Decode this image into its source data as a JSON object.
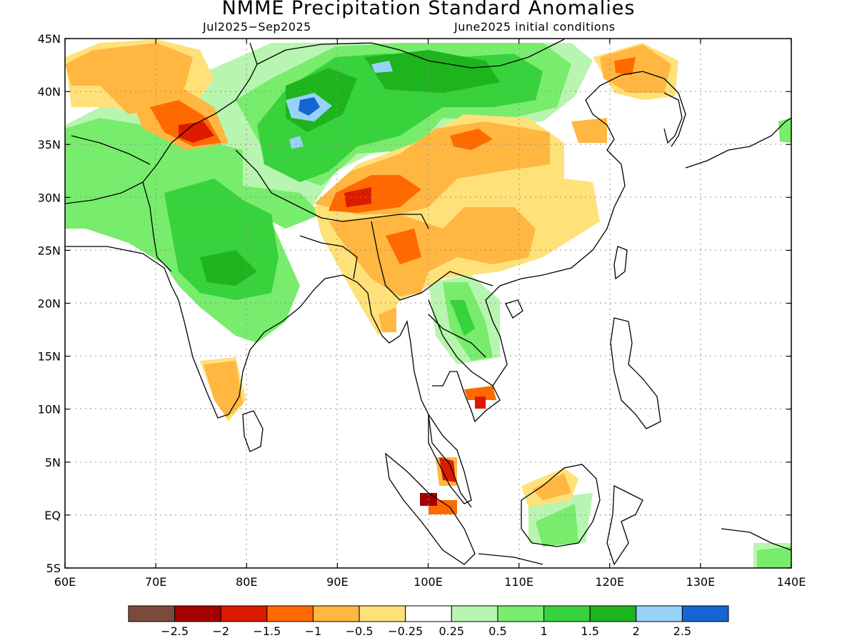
{
  "header": {
    "title": "NMME Precipitation Standard Anomalies",
    "season": "Jul2025−Sep2025",
    "initial_conditions": "June2025 initial conditions"
  },
  "map": {
    "lat_labels": [
      "45N",
      "40N",
      "35N",
      "30N",
      "25N",
      "20N",
      "15N",
      "10N",
      "5N",
      "EQ",
      "5S"
    ],
    "lon_labels": [
      "60E",
      "70E",
      "80E",
      "90E",
      "100E",
      "110E",
      "120E",
      "130E",
      "140E"
    ]
  },
  "legend": {
    "colors": [
      "#7a4b3c",
      "#a40000",
      "#dc1a00",
      "#ff6a00",
      "#ffb741",
      "#ffe17a",
      "#ffffff",
      "#b8f5b0",
      "#78ec6c",
      "#37d23c",
      "#1eb41e",
      "#96d2fa",
      "#1464d2"
    ],
    "labels": [
      "−2.5",
      "−2",
      "−1.5",
      "−1",
      "−0.5",
      "−0.25",
      "0.25",
      "0.5",
      "1",
      "1.5",
      "2",
      "2.5"
    ]
  },
  "colors": {
    "dry_strong": "#dc1a00",
    "dry_moderate": "#ff6a00",
    "dry": "#ffb741",
    "dry_weak": "#ffe17a",
    "wet_weak": "#b8f5b0",
    "wet": "#78ec6c",
    "wet_moderate": "#37d23c",
    "wet_strong": "#1eb41e",
    "very_wet": "#96d2fa",
    "extreme_wet": "#1464d2"
  }
}
